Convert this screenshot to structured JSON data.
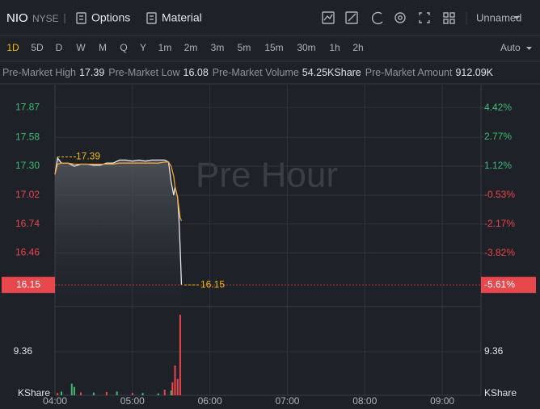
{
  "toolbar": {
    "symbol": "NIO",
    "exchange": "NYSE",
    "options": "Options",
    "material": "Material",
    "layout": "Unnamed"
  },
  "periods": {
    "items": [
      "1D",
      "5D",
      "D",
      "W",
      "M",
      "Q",
      "Y",
      "1m",
      "2m",
      "3m",
      "5m",
      "15m",
      "30m",
      "1h",
      "2h"
    ],
    "active": 0,
    "adjust": "Auto"
  },
  "stats": [
    {
      "label": "Pre-Market High",
      "value": "17.39"
    },
    {
      "label": "Pre-Market Low",
      "value": "16.08"
    },
    {
      "label": "Pre-Market Volume",
      "value": "54.25KShare"
    },
    {
      "label": "Pre-Market Amount",
      "value": "912.09K"
    }
  ],
  "chart_data": {
    "type": "line",
    "watermark": "Pre Hour",
    "x": [
      "04:00",
      "04:02",
      "04:05",
      "04:10",
      "04:15",
      "04:20",
      "04:25",
      "04:30",
      "04:35",
      "04:40",
      "04:45",
      "04:50",
      "04:55",
      "05:00",
      "05:05",
      "05:10",
      "05:15",
      "05:20",
      "05:25",
      "05:28",
      "05:30",
      "05:32",
      "05:33",
      "05:34",
      "05:35",
      "05:36",
      "05:37",
      "05:38"
    ],
    "series": [
      {
        "color": "#e6e8ec",
        "values": [
          17.22,
          17.38,
          17.33,
          17.33,
          17.3,
          17.32,
          17.32,
          17.31,
          17.31,
          17.33,
          17.33,
          17.36,
          17.36,
          17.35,
          17.36,
          17.35,
          17.36,
          17.36,
          17.36,
          17.34,
          17.15,
          17.02,
          17.1,
          17.05,
          17.0,
          16.8,
          16.5,
          16.15
        ]
      },
      {
        "color": "#f0a030",
        "values": [
          17.22,
          17.32,
          17.33,
          17.33,
          17.32,
          17.32,
          17.32,
          17.32,
          17.32,
          17.32,
          17.32,
          17.33,
          17.33,
          17.33,
          17.33,
          17.33,
          17.33,
          17.33,
          17.34,
          17.34,
          17.3,
          17.2,
          17.1,
          17.05,
          17.0,
          16.9,
          16.8,
          16.77
        ]
      }
    ],
    "xlim": [
      "04:00",
      "09:30"
    ],
    "xticks": [
      "04:00",
      "05:00",
      "06:00",
      "07:00",
      "08:00",
      "09:00"
    ],
    "ylim": [
      15.94,
      18.09
    ],
    "yticks": [
      17.87,
      17.58,
      {
        "value": 17.3,
        "label": "17.30"
      },
      17.02,
      16.74,
      16.46
    ],
    "y2lim": [
      -6.84,
      5.73
    ],
    "y2ticks": [
      {
        "value": 4.42,
        "label": "4.42%"
      },
      {
        "value": 2.77,
        "label": "2.77%"
      },
      {
        "value": 1.12,
        "label": "1.12%"
      },
      {
        "value": -0.53,
        "label": "-0.53%"
      },
      {
        "value": -2.17,
        "label": "-2.17%"
      },
      {
        "value": -3.82,
        "label": "-3.82%"
      }
    ],
    "high_marker": 17.39,
    "last": {
      "value": 16.15,
      "change": {
        "value": -5.61,
        "label": "-5.61%"
      }
    },
    "grid": true,
    "up_color": "#3dbb72",
    "down_color": "#e8474c",
    "volume": {
      "unit": "KShare",
      "ylim": [
        0,
        18.2
      ],
      "yticks": [
        9.36
      ],
      "series": [
        {
          "color": "#3dbb72",
          "x": [
            "04:05",
            "04:13",
            "04:15",
            "04:30",
            "04:48",
            "05:08",
            "05:20",
            "05:30"
          ],
          "values": [
            0.8,
            2.5,
            1.8,
            0.6,
            0.8,
            0.5,
            0.4,
            1.0
          ]
        },
        {
          "color": "#e8474c",
          "x": [
            "04:02",
            "04:20",
            "04:40",
            "05:00",
            "05:25",
            "05:31",
            "05:33",
            "05:35",
            "05:37"
          ],
          "values": [
            0.5,
            0.6,
            0.7,
            0.5,
            1.2,
            2.8,
            6.4,
            3.5,
            17.3
          ]
        }
      ]
    }
  }
}
